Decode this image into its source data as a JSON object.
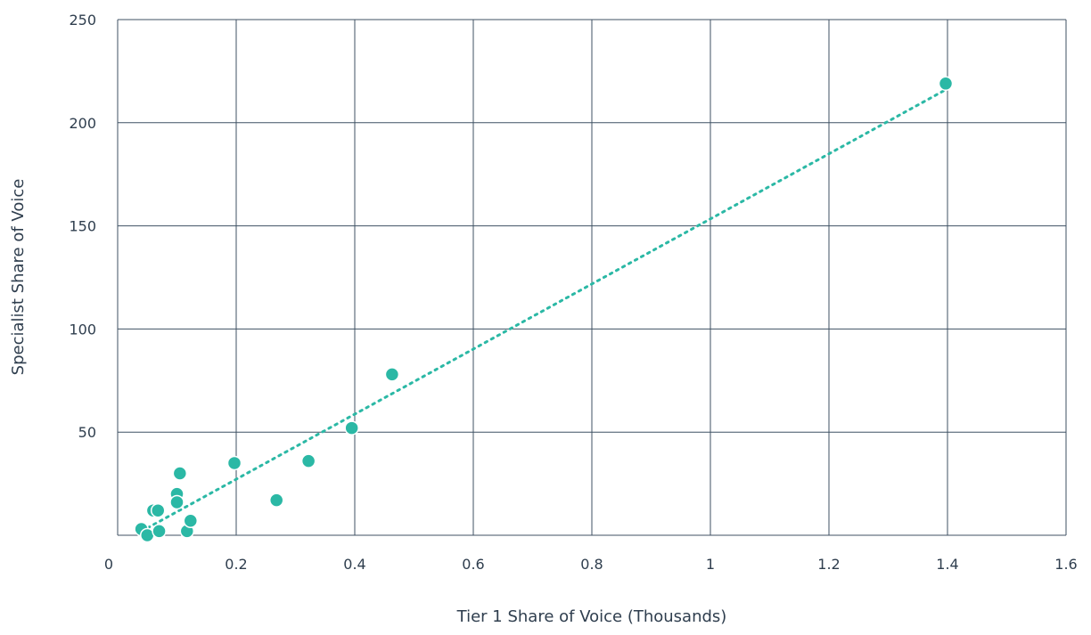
{
  "chart_data": {
    "type": "scatter",
    "title": "",
    "xlabel": "Tier 1 Share of Voice (Thousands)",
    "ylabel": "Specialist Share of Voice",
    "xlim": [
      0,
      1.6
    ],
    "ylim": [
      0,
      250
    ],
    "x_ticks": [
      "0",
      "0.2",
      "0.4",
      "0.6",
      "0.8",
      "1",
      "1.2",
      "1.4",
      "1.6"
    ],
    "y_ticks": [
      "",
      "50",
      "100",
      "150",
      "200",
      "250"
    ],
    "grid": true,
    "trendline": {
      "style": "dotted",
      "type": "linear"
    },
    "series": [
      {
        "points": [
          {
            "x": 0.04,
            "y": 3
          },
          {
            "x": 0.05,
            "y": 0
          },
          {
            "x": 0.06,
            "y": 12
          },
          {
            "x": 0.068,
            "y": 12
          },
          {
            "x": 0.07,
            "y": 2
          },
          {
            "x": 0.1,
            "y": 20
          },
          {
            "x": 0.1,
            "y": 16
          },
          {
            "x": 0.105,
            "y": 30
          },
          {
            "x": 0.117,
            "y": 2
          },
          {
            "x": 0.123,
            "y": 7
          },
          {
            "x": 0.197,
            "y": 35
          },
          {
            "x": 0.268,
            "y": 17
          },
          {
            "x": 0.322,
            "y": 36
          },
          {
            "x": 0.395,
            "y": 52
          },
          {
            "x": 0.463,
            "y": 78
          },
          {
            "x": 1.397,
            "y": 219
          }
        ]
      }
    ],
    "colors": {
      "points": "#2bb8a5",
      "grid": "#3f5163",
      "text": "#2f3e4e",
      "point_outline": "#ffffff"
    }
  }
}
